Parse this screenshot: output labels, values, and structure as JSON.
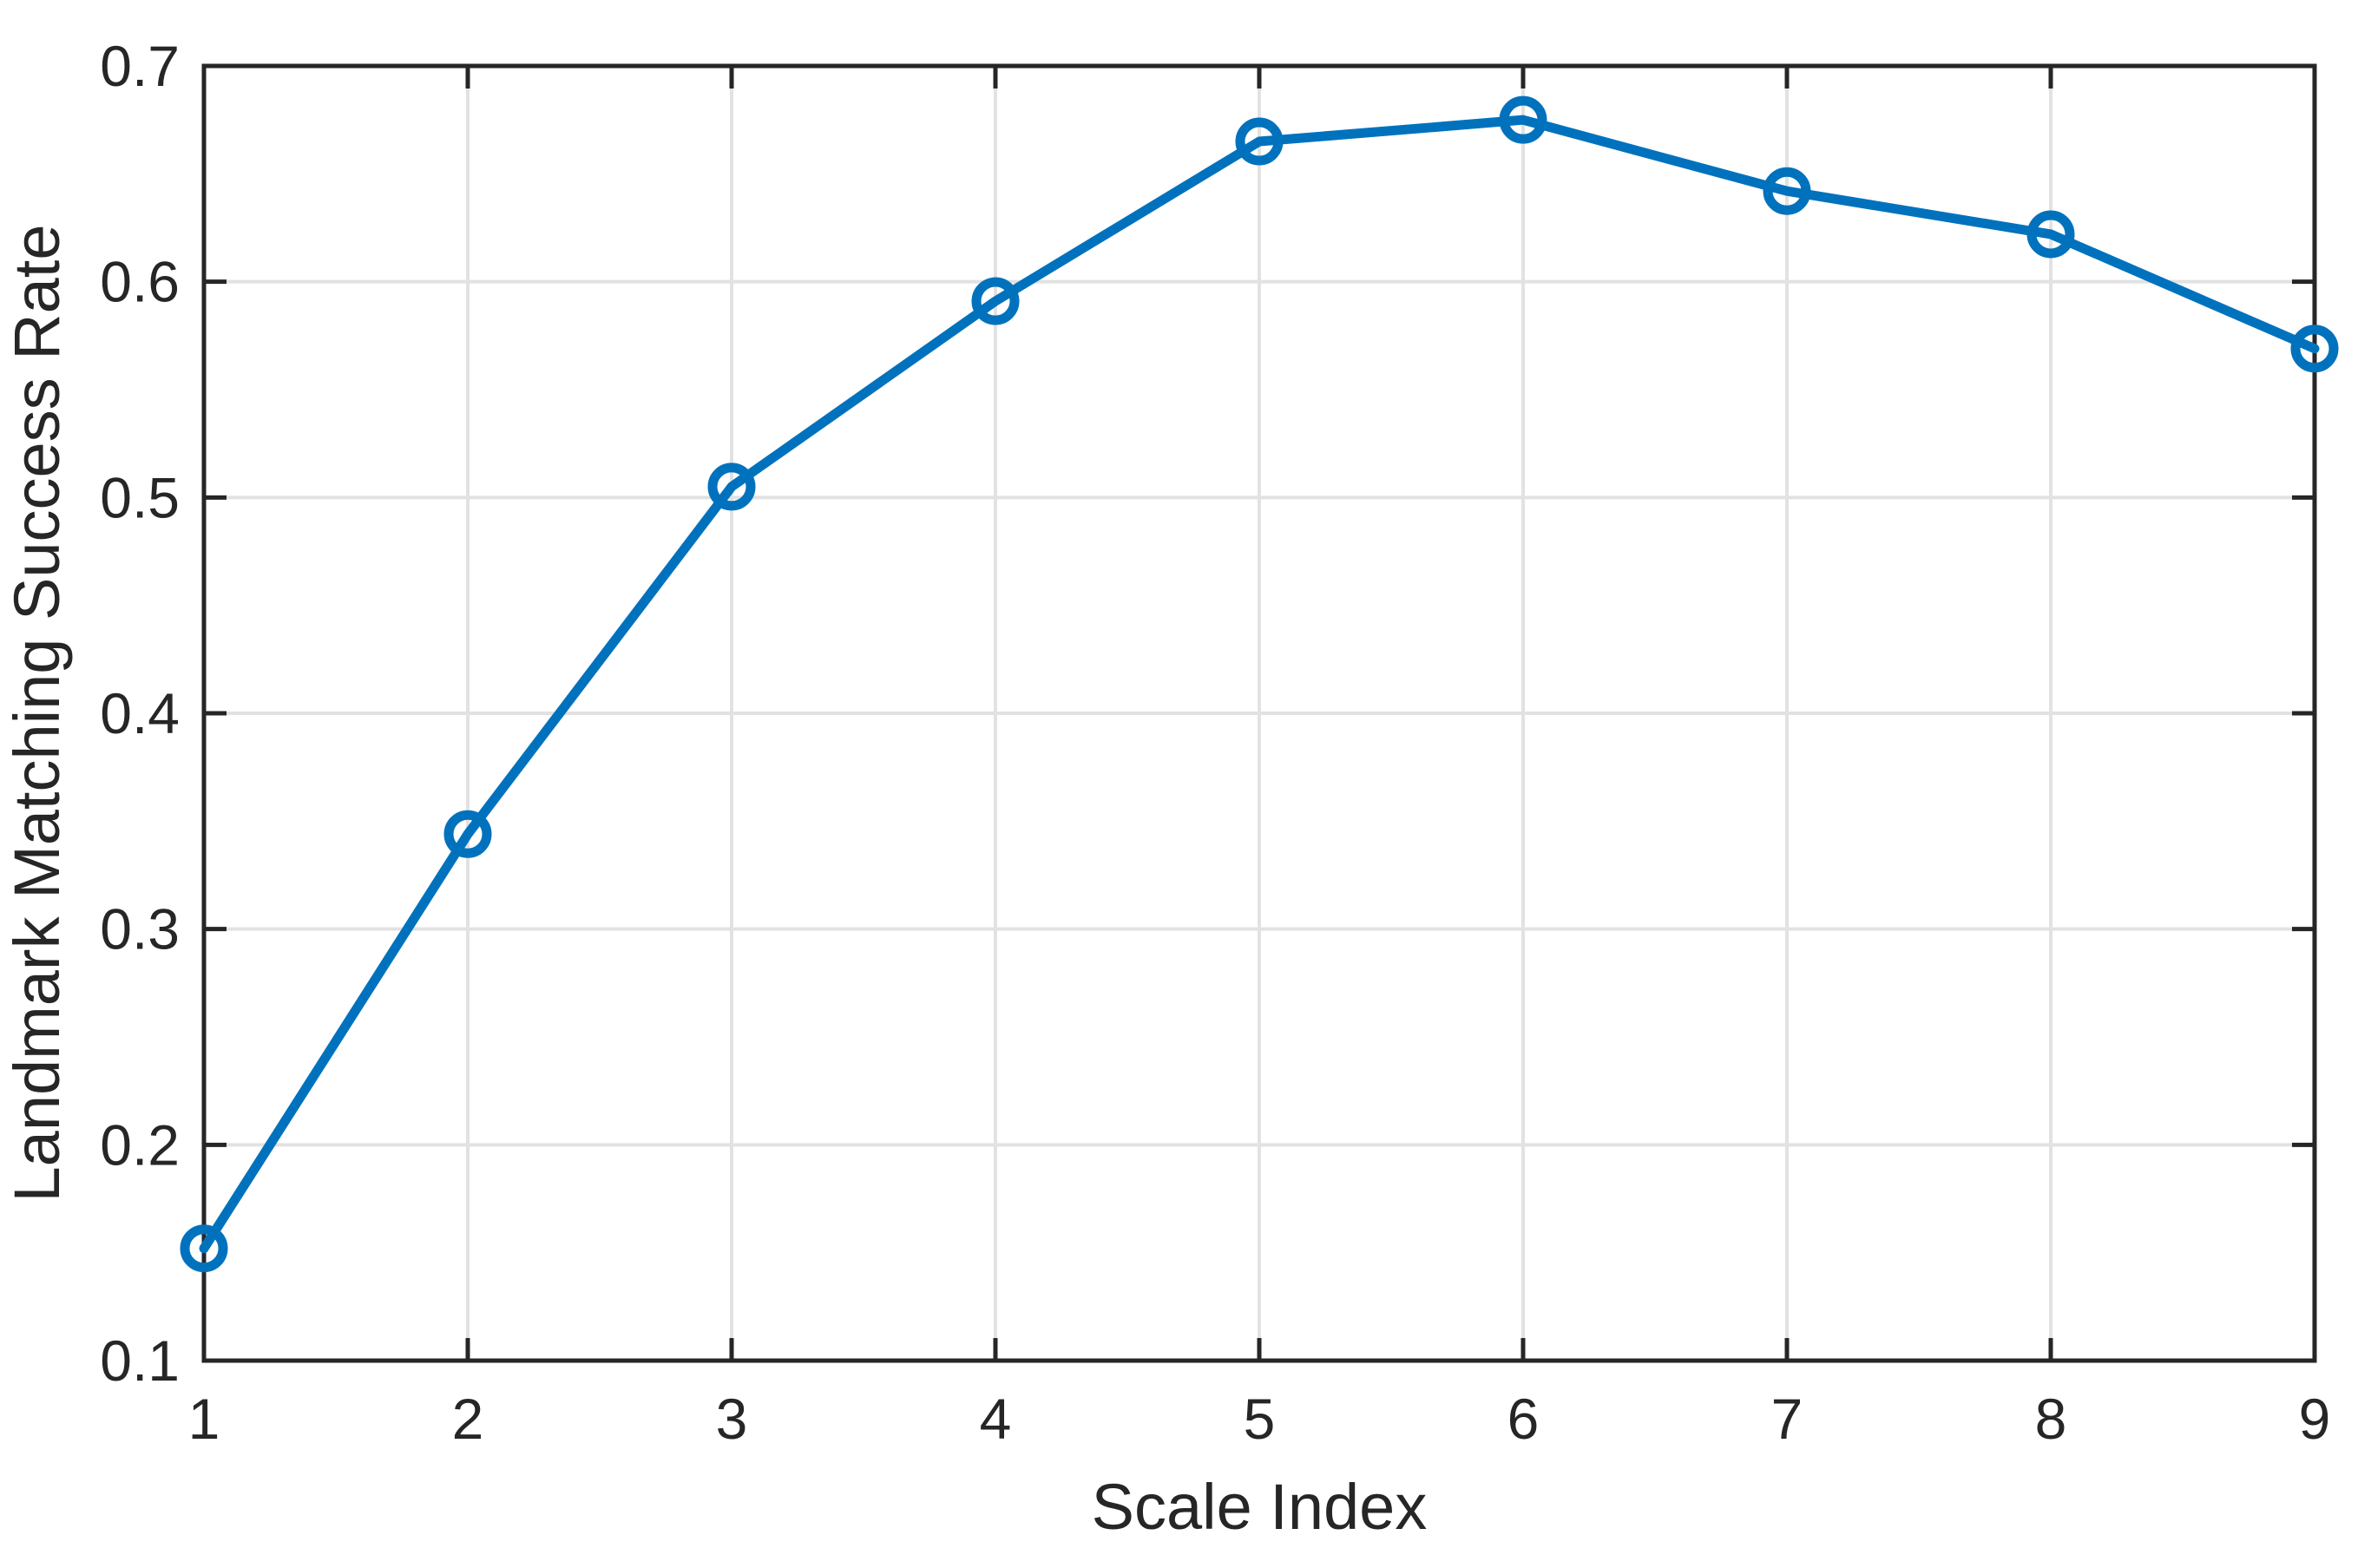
{
  "figure": {
    "background": "#FFFFFF",
    "accent": "#0072BD",
    "axis_color": "#262626",
    "grid_color": "#E2E2E2"
  },
  "chart_data": {
    "type": "line",
    "title": "",
    "xlabel": "Scale Index",
    "ylabel": "Landmark Matching Success Rate",
    "x": [
      1,
      2,
      3,
      4,
      5,
      6,
      7,
      8,
      9
    ],
    "series": [
      {
        "name": "Landmark Matching Success Rate",
        "values": [
          0.152,
          0.344,
          0.505,
          0.591,
          0.665,
          0.675,
          0.642,
          0.622,
          0.569
        ]
      }
    ],
    "xlim": [
      1,
      9
    ],
    "ylim": [
      0.1,
      0.7
    ],
    "xticks": [
      1,
      2,
      3,
      4,
      5,
      6,
      7,
      8,
      9
    ],
    "ytick_labels": [
      "0.1",
      "0.2",
      "0.3",
      "0.4",
      "0.5",
      "0.6",
      "0.7"
    ],
    "yticks": [
      0.1,
      0.2,
      0.3,
      0.4,
      0.5,
      0.6,
      0.7
    ],
    "grid": true,
    "legend_position": "none",
    "marker": "circle",
    "line_color": "#0072BD"
  }
}
